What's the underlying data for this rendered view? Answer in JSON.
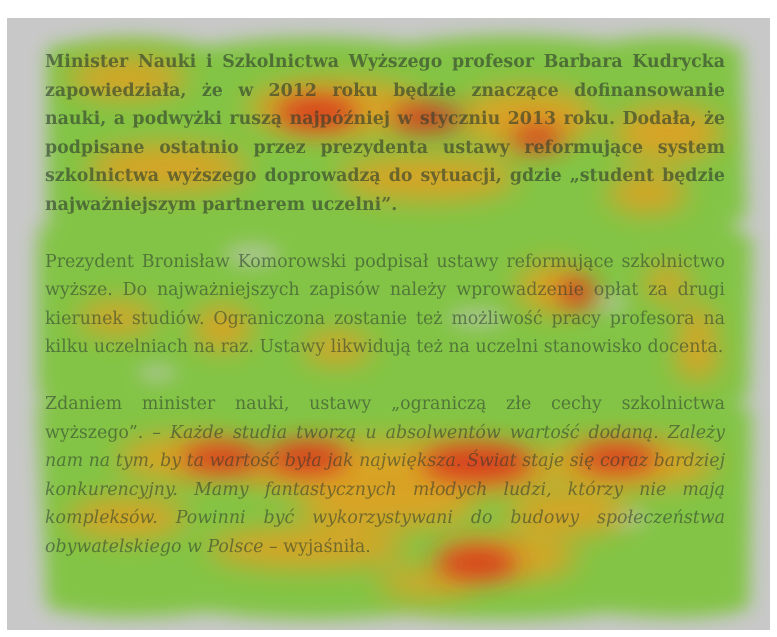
{
  "heatmap": {
    "colors": {
      "background": "#c8c8c8",
      "low": "#7fc43c",
      "mid": "#e0a020",
      "high": "#d8281e"
    }
  },
  "text": {
    "p1": "Minister Nauki i Szkolnictwa Wyższego profesor Barbara Kudrycka zapowiedziała, że w 2012 roku będzie znaczące dofinansowanie nauki, a podwyżki ruszą najpóźniej w styczniu 2013 roku. Dodała, że podpisane ostatnio przez prezydenta ustawy reformujące system szkolnictwa wyższego doprowadzą do sytuacji, gdzie „student będzie najważniejszym partnerem uczelni”.",
    "p2": "Prezydent Bronisław Komorowski podpisał ustawy reformujące szkolnictwo wyższe. Do najważniejszych zapisów należy wprowadzenie opłat za drugi kierunek studiów. Ograniczona zostanie też możliwość pracy profesora na kilku uczelniach na raz. Ustawy likwidują też na uczelni stanowisko docenta.",
    "p3_lead": "Zdaniem minister nauki, ustawy „ograniczą złe cechy szkolnictwa wyższego”. – ",
    "p3_quote": "Każde studia tworzą u absolwentów wartość dodaną. Zależy nam na tym, by ta wartość była jak największa. Świat staje się coraz bardziej konkurencyjny. Mamy fantastycznych młodych ludzi, którzy nie mają kompleksów. Powinni być wykorzystywani do budowy społeczeństwa obywatelskiego w Polsce",
    "p3_tail": " – wyjaśniła."
  }
}
